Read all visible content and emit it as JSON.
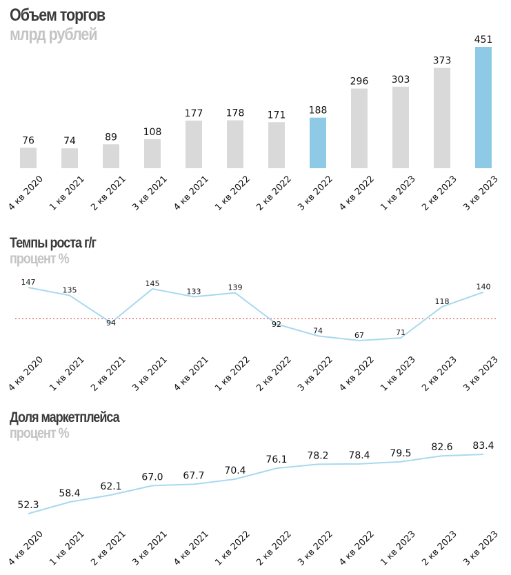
{
  "chart_data": [
    {
      "type": "bar",
      "title": "Объем торгов",
      "subtitle": "млрд рублей",
      "categories": [
        "4 кв 2020",
        "1 кв 2021",
        "2 кв 2021",
        "3 кв 2021",
        "4 кв 2021",
        "1 кв 2022",
        "2 кв 2022",
        "3 кв 2022",
        "4 кв 2022",
        "1 кв 2023",
        "2 кв 2023",
        "3 кв 2023"
      ],
      "values": [
        76,
        74,
        89,
        108,
        177,
        178,
        171,
        188,
        296,
        303,
        373,
        451
      ],
      "value_labels": [
        "76",
        "74",
        "89",
        "108",
        "177",
        "178",
        "171",
        "188",
        "296",
        "303",
        "373",
        "451"
      ],
      "highlight_indices": [
        7,
        11
      ],
      "colors": {
        "bar": "#d9d9d9",
        "highlight": "#8ecae6"
      },
      "ylim": [
        0,
        451
      ]
    },
    {
      "type": "line",
      "title": "Темпы роста г/г",
      "subtitle": "процент %",
      "categories": [
        "4 кв 2020",
        "1 кв 2021",
        "2 кв 2021",
        "3 кв 2021",
        "4 кв 2021",
        "1 кв 2022",
        "2 кв 2022",
        "3 кв 2022",
        "4 кв 2022",
        "1 кв 2023",
        "2 кв 2023",
        "3 кв 2023"
      ],
      "values": [
        147,
        135,
        94,
        145,
        133,
        139,
        92,
        74,
        67,
        71,
        118,
        140
      ],
      "value_labels": [
        "147",
        "135",
        "94",
        "145",
        "133",
        "139",
        "92",
        "74",
        "67",
        "71",
        "118",
        "140"
      ],
      "reference_line": 100,
      "colors": {
        "line": "#a8d8ee",
        "reference": "#e07070"
      },
      "ylim": [
        60,
        155
      ]
    },
    {
      "type": "line",
      "title": "Доля маркетплейса",
      "subtitle": "процент %",
      "categories": [
        "4 кв 2020",
        "1 кв 2021",
        "2 кв 2021",
        "3 кв 2021",
        "4 кв 2021",
        "1 кв 2022",
        "2 кв 2022",
        "3 кв 2022",
        "4 кв 2022",
        "1 кв 2023",
        "2 кв 2023",
        "3 кв 2023"
      ],
      "values": [
        52.3,
        58.4,
        62.1,
        67.0,
        67.7,
        70.4,
        76.1,
        78.2,
        78.4,
        79.5,
        82.6,
        83.4
      ],
      "value_labels": [
        "52.3",
        "58.4",
        "62.1",
        "67.0",
        "67.7",
        "70.4",
        "76.1",
        "78.2",
        "78.4",
        "79.5",
        "82.6",
        "83.4"
      ],
      "colors": {
        "line": "#a8d8ee"
      },
      "ylim": [
        50,
        85
      ]
    }
  ]
}
